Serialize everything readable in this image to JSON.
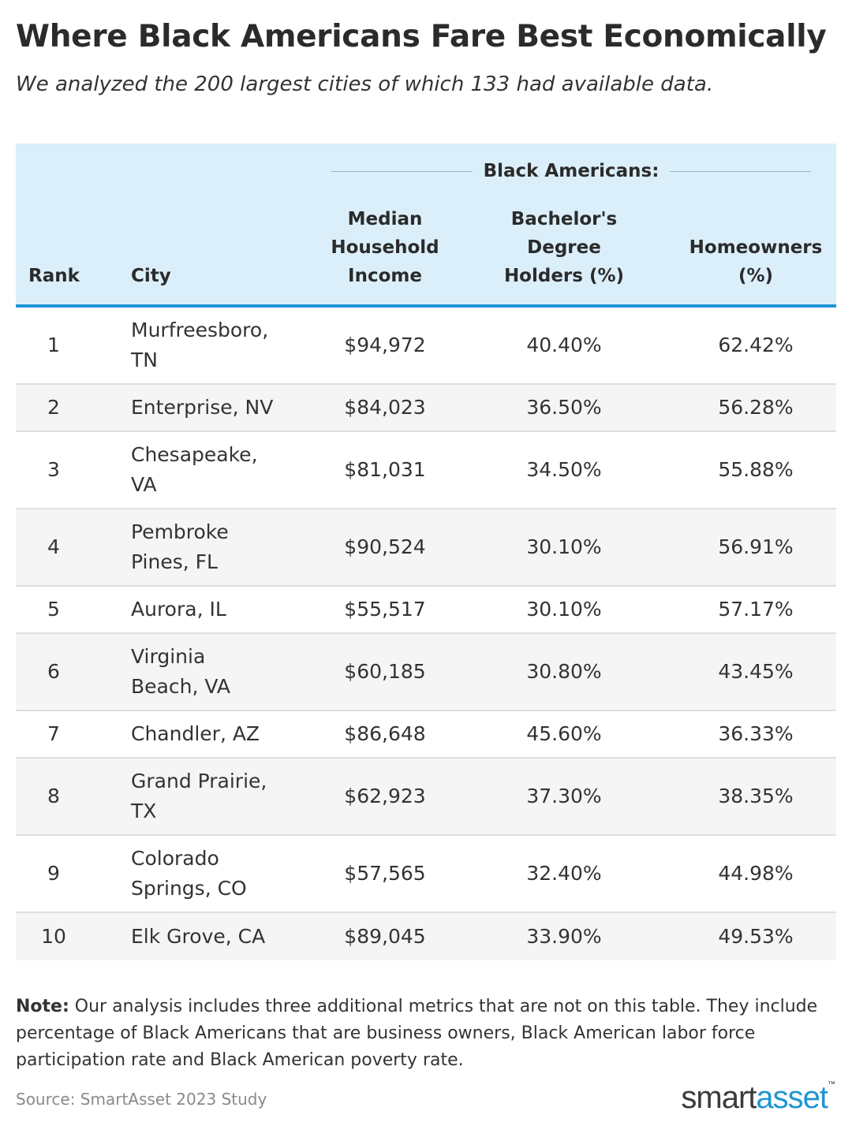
{
  "title": "Where Black Americans Fare Best Economically",
  "subtitle": "We analyzed the 200 largest cities of which 133 had available data.",
  "table": {
    "group_label": "Black Americans:",
    "headers": {
      "rank": "Rank",
      "city": "City",
      "income": [
        "Median",
        "Household",
        "Income"
      ],
      "degree": [
        "Bachelor's",
        "Degree",
        "Holders (%)"
      ],
      "home": [
        "Homeowners",
        "(%)"
      ]
    },
    "rows": [
      {
        "rank": "1",
        "city": [
          "Murfreesboro,",
          "TN"
        ],
        "income": "$94,972",
        "degree": "40.40%",
        "home": "62.42%"
      },
      {
        "rank": "2",
        "city": [
          "Enterprise, NV"
        ],
        "income": "$84,023",
        "degree": "36.50%",
        "home": "56.28%"
      },
      {
        "rank": "3",
        "city": [
          "Chesapeake,",
          "VA"
        ],
        "income": "$81,031",
        "degree": "34.50%",
        "home": "55.88%"
      },
      {
        "rank": "4",
        "city": [
          "Pembroke",
          "Pines, FL"
        ],
        "income": "$90,524",
        "degree": "30.10%",
        "home": "56.91%"
      },
      {
        "rank": "5",
        "city": [
          "Aurora, IL"
        ],
        "income": "$55,517",
        "degree": "30.10%",
        "home": "57.17%"
      },
      {
        "rank": "6",
        "city": [
          "Virginia",
          "Beach, VA"
        ],
        "income": "$60,185",
        "degree": "30.80%",
        "home": "43.45%"
      },
      {
        "rank": "7",
        "city": [
          "Chandler, AZ"
        ],
        "income": "$86,648",
        "degree": "45.60%",
        "home": "36.33%"
      },
      {
        "rank": "8",
        "city": [
          "Grand Prairie,",
          "TX"
        ],
        "income": "$62,923",
        "degree": "37.30%",
        "home": "38.35%"
      },
      {
        "rank": "9",
        "city": [
          "Colorado",
          "Springs, CO"
        ],
        "income": "$57,565",
        "degree": "32.40%",
        "home": "44.98%"
      },
      {
        "rank": "10",
        "city": [
          "Elk Grove, CA"
        ],
        "income": "$89,045",
        "degree": "33.90%",
        "home": "49.53%"
      }
    ]
  },
  "note": {
    "label": "Note:",
    "text": "Our analysis includes three additional metrics that are not on this table. They include percentage of Black Americans that are business owners, Black American labor force participation rate and Black American poverty rate."
  },
  "source": "Source: SmartAsset 2023 Study",
  "logo": {
    "part1": "smart",
    "part2": "asset",
    "tm": "™"
  }
}
